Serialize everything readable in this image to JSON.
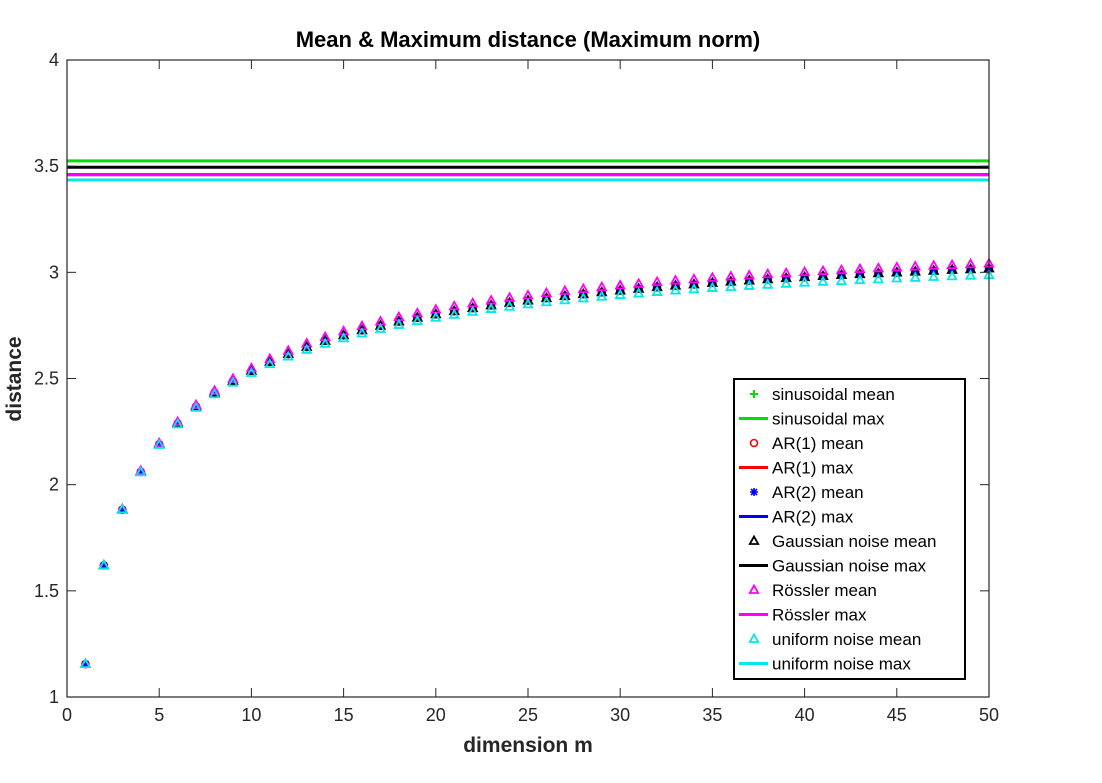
{
  "chart_data": {
    "type": "scatter",
    "title": "Mean & Maximum distance (Maximum norm)",
    "xlabel": "dimension m",
    "ylabel": "distance",
    "xlim": [
      0,
      50
    ],
    "ylim": [
      1,
      4
    ],
    "xticks": [
      0,
      5,
      10,
      15,
      20,
      25,
      30,
      35,
      40,
      45,
      50
    ],
    "yticks": [
      1,
      1.5,
      2,
      2.5,
      3,
      3.5,
      4
    ],
    "x": [
      1,
      2,
      3,
      4,
      5,
      6,
      7,
      8,
      9,
      10,
      11,
      12,
      13,
      14,
      15,
      16,
      17,
      18,
      19,
      20,
      21,
      22,
      23,
      24,
      25,
      26,
      27,
      28,
      29,
      30,
      31,
      32,
      33,
      34,
      35,
      36,
      37,
      38,
      39,
      40,
      41,
      42,
      43,
      44,
      45,
      46,
      47,
      48,
      49,
      50
    ],
    "legend_position": "lower-right",
    "series": [
      {
        "name": "sinusoidal mean",
        "kind": "marker",
        "marker": "plus",
        "color": "#00dd00",
        "values": [
          1.155,
          1.62,
          1.882,
          2.06,
          2.19,
          2.288,
          2.368,
          2.433,
          2.488,
          2.536,
          2.578,
          2.615,
          2.648,
          2.677,
          2.703,
          2.727,
          2.748,
          2.768,
          2.786,
          2.802,
          2.817,
          2.831,
          2.844,
          2.856,
          2.867,
          2.878,
          2.888,
          2.897,
          2.906,
          2.914,
          2.922,
          2.93,
          2.937,
          2.943,
          2.95,
          2.956,
          2.961,
          2.967,
          2.972,
          2.977,
          2.982,
          2.987,
          2.991,
          2.995,
          2.999,
          3.003,
          3.007,
          3.011,
          3.014,
          3.018
        ]
      },
      {
        "name": "sinusoidal max",
        "kind": "line",
        "color": "#00dd00",
        "value": 3.525
      },
      {
        "name": "AR(1) mean",
        "kind": "marker",
        "marker": "circle",
        "color": "#ff0000",
        "values": [
          1.155,
          1.62,
          1.882,
          2.06,
          2.19,
          2.288,
          2.368,
          2.433,
          2.488,
          2.536,
          2.578,
          2.615,
          2.648,
          2.677,
          2.703,
          2.727,
          2.748,
          2.768,
          2.786,
          2.802,
          2.817,
          2.831,
          2.844,
          2.856,
          2.867,
          2.878,
          2.888,
          2.897,
          2.906,
          2.914,
          2.922,
          2.93,
          2.937,
          2.943,
          2.95,
          2.956,
          2.961,
          2.967,
          2.972,
          2.977,
          2.982,
          2.987,
          2.991,
          2.995,
          2.999,
          3.003,
          3.007,
          3.011,
          3.014,
          3.018
        ]
      },
      {
        "name": "AR(1) max",
        "kind": "line",
        "color": "#ff0000",
        "value": 3.46
      },
      {
        "name": "AR(2) mean",
        "kind": "marker",
        "marker": "asterisk",
        "color": "#0000ff",
        "values": [
          1.155,
          1.62,
          1.882,
          2.06,
          2.19,
          2.288,
          2.368,
          2.433,
          2.488,
          2.536,
          2.578,
          2.615,
          2.648,
          2.677,
          2.703,
          2.727,
          2.748,
          2.768,
          2.786,
          2.802,
          2.817,
          2.831,
          2.844,
          2.856,
          2.867,
          2.878,
          2.888,
          2.897,
          2.906,
          2.914,
          2.922,
          2.93,
          2.937,
          2.943,
          2.95,
          2.956,
          2.961,
          2.967,
          2.972,
          2.977,
          2.982,
          2.987,
          2.991,
          2.995,
          2.999,
          3.003,
          3.007,
          3.011,
          3.014,
          3.018
        ]
      },
      {
        "name": "AR(2) max",
        "kind": "line",
        "color": "#0000ff",
        "value": 3.46
      },
      {
        "name": "Gaussian noise mean",
        "kind": "marker",
        "marker": "triangle",
        "color": "#000000",
        "values": [
          1.155,
          1.62,
          1.882,
          2.06,
          2.19,
          2.288,
          2.368,
          2.433,
          2.488,
          2.536,
          2.578,
          2.615,
          2.648,
          2.677,
          2.703,
          2.727,
          2.748,
          2.768,
          2.786,
          2.802,
          2.817,
          2.831,
          2.844,
          2.856,
          2.867,
          2.878,
          2.888,
          2.897,
          2.906,
          2.914,
          2.922,
          2.93,
          2.937,
          2.943,
          2.95,
          2.956,
          2.961,
          2.967,
          2.972,
          2.977,
          2.982,
          2.987,
          2.991,
          2.995,
          2.999,
          3.003,
          3.007,
          3.011,
          3.014,
          3.018
        ]
      },
      {
        "name": "Gaussian noise max",
        "kind": "line",
        "color": "#000000",
        "value": 3.495
      },
      {
        "name": "Rössler mean",
        "kind": "marker",
        "marker": "triangle",
        "color": "#ff00ff",
        "values": [
          1.155,
          1.62,
          1.885,
          2.065,
          2.195,
          2.295,
          2.375,
          2.442,
          2.498,
          2.548,
          2.592,
          2.63,
          2.665,
          2.695,
          2.722,
          2.746,
          2.768,
          2.789,
          2.807,
          2.824,
          2.84,
          2.854,
          2.867,
          2.88,
          2.891,
          2.902,
          2.912,
          2.921,
          2.93,
          2.938,
          2.946,
          2.954,
          2.961,
          2.967,
          2.974,
          2.98,
          2.985,
          2.991,
          2.996,
          3.001,
          3.006,
          3.01,
          3.015,
          3.019,
          3.023,
          3.027,
          3.031,
          3.034,
          3.038,
          3.041
        ]
      },
      {
        "name": "Rössler max",
        "kind": "line",
        "color": "#ff00ff",
        "value": 3.46
      },
      {
        "name": "uniform noise mean",
        "kind": "marker",
        "marker": "triangle",
        "color": "#00e8e8",
        "values": [
          1.155,
          1.62,
          1.882,
          2.058,
          2.187,
          2.284,
          2.362,
          2.426,
          2.48,
          2.526,
          2.567,
          2.603,
          2.635,
          2.663,
          2.689,
          2.712,
          2.733,
          2.752,
          2.77,
          2.786,
          2.8,
          2.814,
          2.827,
          2.838,
          2.849,
          2.859,
          2.868,
          2.877,
          2.885,
          2.893,
          2.9,
          2.907,
          2.914,
          2.92,
          2.926,
          2.931,
          2.936,
          2.941,
          2.946,
          2.951,
          2.955,
          2.959,
          2.963,
          2.967,
          2.971,
          2.974,
          2.978,
          2.981,
          2.984,
          2.987
        ]
      },
      {
        "name": "uniform noise max",
        "kind": "line",
        "color": "#00e8e8",
        "value": 3.435
      }
    ]
  }
}
